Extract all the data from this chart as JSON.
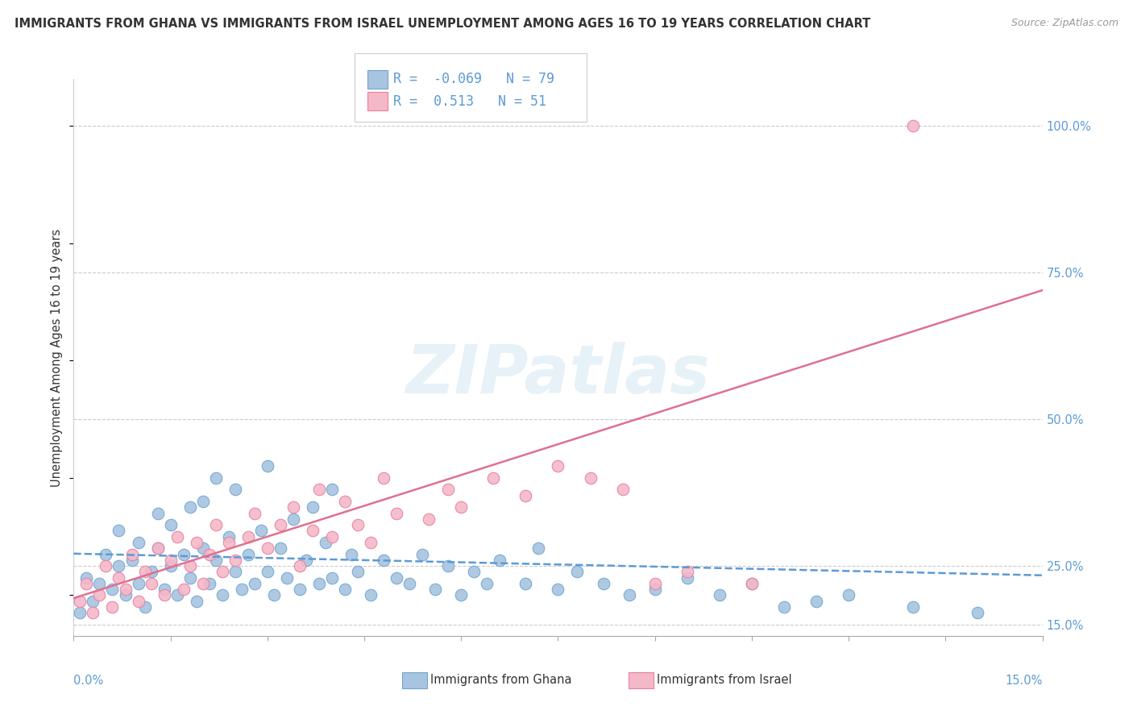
{
  "title": "IMMIGRANTS FROM GHANA VS IMMIGRANTS FROM ISRAEL UNEMPLOYMENT AMONG AGES 16 TO 19 YEARS CORRELATION CHART",
  "source": "Source: ZipAtlas.com",
  "ylabel": "Unemployment Among Ages 16 to 19 years",
  "ylabel_right_ticks": [
    "100.0%",
    "75.0%",
    "50.0%",
    "25.0%",
    "15.0%"
  ],
  "ylabel_right_values": [
    1.0,
    0.75,
    0.5,
    0.25,
    0.15
  ],
  "xmin": 0.0,
  "xmax": 0.15,
  "ymin": 0.13,
  "ymax": 1.08,
  "ghana_R": -0.069,
  "ghana_N": 79,
  "israel_R": 0.513,
  "israel_N": 51,
  "ghana_color": "#a8c4e0",
  "israel_color": "#f4b8c8",
  "ghana_edge_color": "#6ea6d0",
  "israel_edge_color": "#e87fa0",
  "ghana_line_color": "#5b9bd5",
  "israel_line_color": "#e07090",
  "background_color": "#ffffff",
  "watermark_text": "ZIPatlas",
  "legend_label_ghana": "Immigrants from Ghana",
  "legend_label_israel": "Immigrants from Israel",
  "ghana_trend_x0": 0.0,
  "ghana_trend_y0": 0.271,
  "ghana_trend_x1": 0.15,
  "ghana_trend_y1": 0.234,
  "israel_trend_x0": 0.0,
  "israel_trend_y0": 0.195,
  "israel_trend_x1": 0.15,
  "israel_trend_y1": 0.72,
  "ghana_x": [
    0.002,
    0.003,
    0.004,
    0.005,
    0.006,
    0.007,
    0.007,
    0.008,
    0.009,
    0.01,
    0.01,
    0.011,
    0.012,
    0.013,
    0.013,
    0.014,
    0.015,
    0.015,
    0.016,
    0.017,
    0.018,
    0.018,
    0.019,
    0.02,
    0.02,
    0.021,
    0.022,
    0.022,
    0.023,
    0.024,
    0.025,
    0.025,
    0.026,
    0.027,
    0.028,
    0.029,
    0.03,
    0.03,
    0.031,
    0.032,
    0.033,
    0.034,
    0.035,
    0.036,
    0.037,
    0.038,
    0.039,
    0.04,
    0.04,
    0.042,
    0.043,
    0.044,
    0.046,
    0.048,
    0.05,
    0.052,
    0.054,
    0.056,
    0.058,
    0.06,
    0.062,
    0.064,
    0.066,
    0.07,
    0.072,
    0.075,
    0.078,
    0.082,
    0.086,
    0.09,
    0.095,
    0.1,
    0.105,
    0.11,
    0.115,
    0.12,
    0.13,
    0.14,
    0.001
  ],
  "ghana_y": [
    0.23,
    0.19,
    0.22,
    0.27,
    0.21,
    0.25,
    0.31,
    0.2,
    0.26,
    0.22,
    0.29,
    0.18,
    0.24,
    0.28,
    0.34,
    0.21,
    0.25,
    0.32,
    0.2,
    0.27,
    0.23,
    0.35,
    0.19,
    0.28,
    0.36,
    0.22,
    0.26,
    0.4,
    0.2,
    0.3,
    0.24,
    0.38,
    0.21,
    0.27,
    0.22,
    0.31,
    0.24,
    0.42,
    0.2,
    0.28,
    0.23,
    0.33,
    0.21,
    0.26,
    0.35,
    0.22,
    0.29,
    0.23,
    0.38,
    0.21,
    0.27,
    0.24,
    0.2,
    0.26,
    0.23,
    0.22,
    0.27,
    0.21,
    0.25,
    0.2,
    0.24,
    0.22,
    0.26,
    0.22,
    0.28,
    0.21,
    0.24,
    0.22,
    0.2,
    0.21,
    0.23,
    0.2,
    0.22,
    0.18,
    0.19,
    0.2,
    0.18,
    0.17,
    0.17
  ],
  "israel_x": [
    0.001,
    0.002,
    0.003,
    0.004,
    0.005,
    0.006,
    0.007,
    0.008,
    0.009,
    0.01,
    0.011,
    0.012,
    0.013,
    0.014,
    0.015,
    0.016,
    0.017,
    0.018,
    0.019,
    0.02,
    0.021,
    0.022,
    0.023,
    0.024,
    0.025,
    0.027,
    0.028,
    0.03,
    0.032,
    0.034,
    0.035,
    0.037,
    0.038,
    0.04,
    0.042,
    0.044,
    0.046,
    0.048,
    0.05,
    0.055,
    0.058,
    0.06,
    0.065,
    0.07,
    0.075,
    0.08,
    0.085,
    0.09,
    0.095,
    0.105,
    0.13
  ],
  "israel_y": [
    0.19,
    0.22,
    0.17,
    0.2,
    0.25,
    0.18,
    0.23,
    0.21,
    0.27,
    0.19,
    0.24,
    0.22,
    0.28,
    0.2,
    0.26,
    0.3,
    0.21,
    0.25,
    0.29,
    0.22,
    0.27,
    0.32,
    0.24,
    0.29,
    0.26,
    0.3,
    0.34,
    0.28,
    0.32,
    0.35,
    0.25,
    0.31,
    0.38,
    0.3,
    0.36,
    0.32,
    0.29,
    0.4,
    0.34,
    0.33,
    0.38,
    0.35,
    0.4,
    0.37,
    0.42,
    0.4,
    0.38,
    0.22,
    0.24,
    0.22,
    1.0
  ]
}
